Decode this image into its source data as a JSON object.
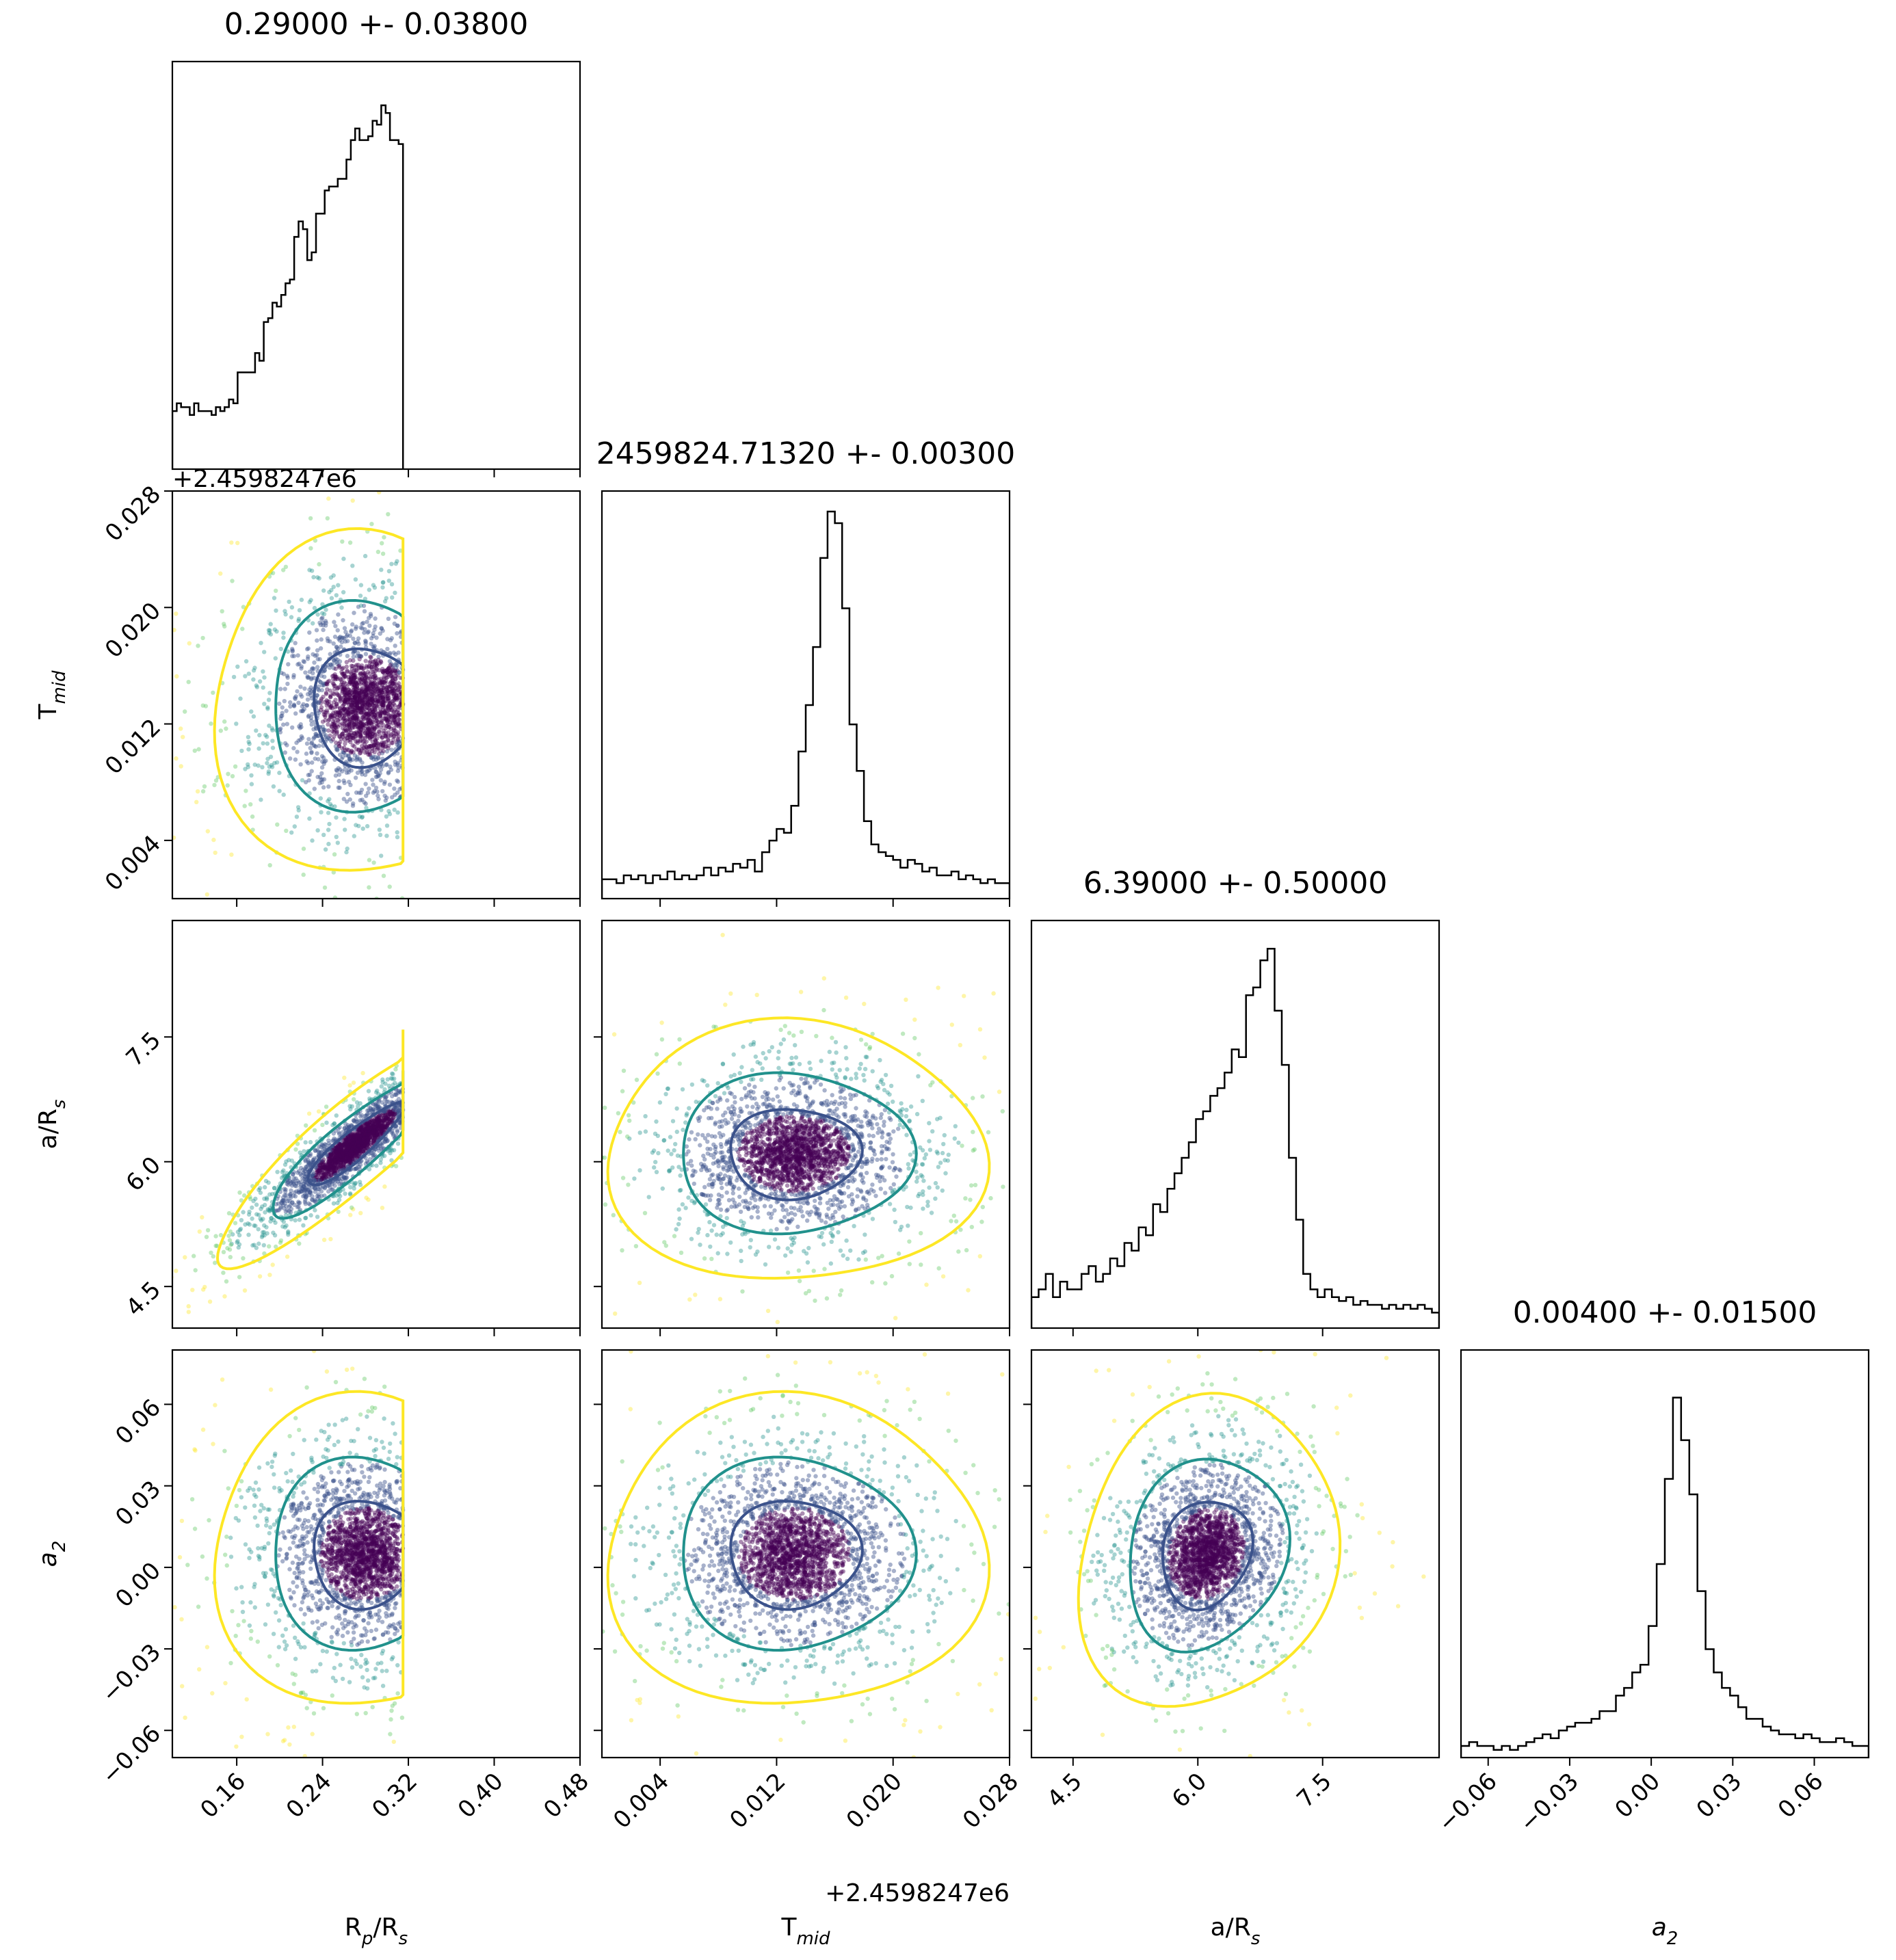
{
  "figure": {
    "params": [
      {
        "key": "rp",
        "label": "R",
        "sub": "p",
        "suffix": "/R",
        "suffix_sub": "s",
        "median": 0.29,
        "std": 0.038
      },
      {
        "key": "tmid",
        "label": "T",
        "sub": "mid",
        "suffix": "",
        "suffix_sub": "",
        "median": 0.0132,
        "std": 0.003
      },
      {
        "key": "ars",
        "label": "a/R",
        "sub": "s",
        "suffix": "",
        "suffix_sub": "",
        "median": 6.39,
        "std": 0.5
      },
      {
        "key": "a2",
        "label": "a",
        "sub": "2",
        "suffix": "",
        "suffix_sub": "",
        "median": 0.004,
        "std": 0.015
      }
    ],
    "titles": [
      "0.29000 +- 0.03800",
      "2459824.71320 +- 0.00300",
      "6.39000 +- 0.50000",
      "0.00400 +- 0.01500"
    ],
    "offset_text": "+2.4598247e6",
    "x_axis_labels": [
      "R",
      "T",
      "a/R",
      "a"
    ],
    "y_axis_labels": [
      "",
      "T",
      "a/R",
      "a"
    ]
  },
  "chart_data": {
    "type": "scatter",
    "subtype": "corner-plot",
    "grid": false,
    "contour_levels": [
      "inner",
      "middle",
      "outer"
    ],
    "contour_colors": [
      "#3b528b",
      "#21918c",
      "#fde725"
    ],
    "point_colormap": [
      "#440154",
      "#3b528b",
      "#21918c",
      "#5ec962",
      "#fde725"
    ],
    "hist_color": "#000000",
    "axes": {
      "rp": {
        "range": [
          0.1,
          0.48
        ],
        "ticks": [
          0.16,
          0.24,
          0.32,
          0.4,
          0.48
        ],
        "tick_labels": [
          "0.16",
          "0.24",
          "0.32",
          "0.40",
          "0.48"
        ],
        "truncate_at": 0.315
      },
      "tmid": {
        "range": [
          0.0,
          0.028
        ],
        "ticks": [
          0.004,
          0.012,
          0.02,
          0.028
        ],
        "tick_labels": [
          "0.004",
          "0.012",
          "0.020",
          "0.028"
        ]
      },
      "ars": {
        "range": [
          4.0,
          8.9
        ],
        "ticks": [
          4.5,
          6.0,
          7.5
        ],
        "tick_labels": [
          "4.5",
          "6.0",
          "7.5"
        ]
      },
      "a2": {
        "range": [
          -0.07,
          0.08
        ],
        "ticks": [
          -0.06,
          -0.03,
          0.0,
          0.03,
          0.06
        ],
        "tick_labels": [
          "−0.06",
          "−0.03",
          "0.00",
          "0.03",
          "0.06"
        ]
      }
    },
    "histograms": {
      "rp": {
        "edges": [
          0.1,
          0.315
        ],
        "counts": [
          0.15,
          0.17,
          0.16,
          0.16,
          0.14,
          0.17,
          0.15,
          0.15,
          0.15,
          0.14,
          0.16,
          0.15,
          0.16,
          0.18,
          0.17,
          0.25,
          0.25,
          0.25,
          0.25,
          0.3,
          0.28,
          0.38,
          0.39,
          0.43,
          0.42,
          0.45,
          0.48,
          0.49,
          0.6,
          0.64,
          0.62,
          0.54,
          0.56,
          0.66,
          0.66,
          0.72,
          0.73,
          0.73,
          0.75,
          0.75,
          0.8,
          0.85,
          0.88,
          0.85,
          0.85,
          0.86,
          0.9,
          0.89,
          0.94,
          0.92,
          0.85,
          0.85,
          0.84
        ]
      },
      "tmid": {
        "edges": [
          0.0,
          0.028
        ],
        "counts": [
          0.05,
          0.05,
          0.04,
          0.06,
          0.05,
          0.06,
          0.04,
          0.06,
          0.05,
          0.07,
          0.05,
          0.06,
          0.05,
          0.06,
          0.08,
          0.06,
          0.08,
          0.07,
          0.09,
          0.08,
          0.1,
          0.07,
          0.12,
          0.15,
          0.18,
          0.17,
          0.24,
          0.38,
          0.5,
          0.65,
          0.88,
          1.0,
          0.97,
          0.75,
          0.45,
          0.33,
          0.2,
          0.14,
          0.12,
          0.11,
          0.1,
          0.08,
          0.1,
          0.09,
          0.07,
          0.08,
          0.06,
          0.06,
          0.07,
          0.05,
          0.06,
          0.05,
          0.04,
          0.05,
          0.04,
          0.04
        ]
      },
      "ars": {
        "edges": [
          4.0,
          8.9
        ],
        "counts": [
          0.08,
          0.1,
          0.14,
          0.08,
          0.12,
          0.1,
          0.1,
          0.14,
          0.16,
          0.12,
          0.14,
          0.18,
          0.16,
          0.22,
          0.2,
          0.26,
          0.24,
          0.32,
          0.3,
          0.36,
          0.4,
          0.44,
          0.48,
          0.54,
          0.56,
          0.6,
          0.62,
          0.66,
          0.72,
          0.7,
          0.86,
          0.88,
          0.95,
          0.98,
          0.82,
          0.68,
          0.44,
          0.28,
          0.14,
          0.1,
          0.08,
          0.1,
          0.08,
          0.07,
          0.08,
          0.06,
          0.07,
          0.06,
          0.06,
          0.05,
          0.06,
          0.05,
          0.06,
          0.05,
          0.06,
          0.05,
          0.04
        ]
      },
      "a2": {
        "edges": [
          -0.07,
          0.08
        ],
        "counts": [
          0.03,
          0.04,
          0.03,
          0.03,
          0.02,
          0.03,
          0.02,
          0.03,
          0.04,
          0.05,
          0.06,
          0.05,
          0.07,
          0.08,
          0.09,
          0.09,
          0.1,
          0.12,
          0.12,
          0.16,
          0.18,
          0.22,
          0.24,
          0.34,
          0.5,
          0.72,
          0.93,
          0.82,
          0.68,
          0.43,
          0.28,
          0.22,
          0.18,
          0.16,
          0.13,
          0.1,
          0.1,
          0.08,
          0.07,
          0.06,
          0.06,
          0.05,
          0.06,
          0.05,
          0.04,
          0.04,
          0.05,
          0.04,
          0.03,
          0.03
        ]
      }
    },
    "pairs": [
      {
        "x": "rp",
        "y": "tmid",
        "center": [
          0.28,
          0.0132
        ],
        "spread": [
          0.055,
          0.0045
        ],
        "corr": 0.0
      },
      {
        "x": "rp",
        "y": "ars",
        "center": [
          0.27,
          6.2
        ],
        "spread": [
          0.05,
          0.55
        ],
        "corr": 0.9
      },
      {
        "x": "tmid",
        "y": "ars",
        "center": [
          0.0132,
          6.1
        ],
        "spread": [
          0.005,
          0.6
        ],
        "corr": 0.0
      },
      {
        "x": "rp",
        "y": "a2",
        "center": [
          0.28,
          0.005
        ],
        "spread": [
          0.055,
          0.022
        ],
        "corr": 0.0
      },
      {
        "x": "tmid",
        "y": "a2",
        "center": [
          0.0132,
          0.005
        ],
        "spread": [
          0.005,
          0.022
        ],
        "corr": 0.0
      },
      {
        "x": "ars",
        "y": "a2",
        "center": [
          6.1,
          0.005
        ],
        "spread": [
          0.6,
          0.022
        ],
        "corr": 0.15
      }
    ]
  }
}
